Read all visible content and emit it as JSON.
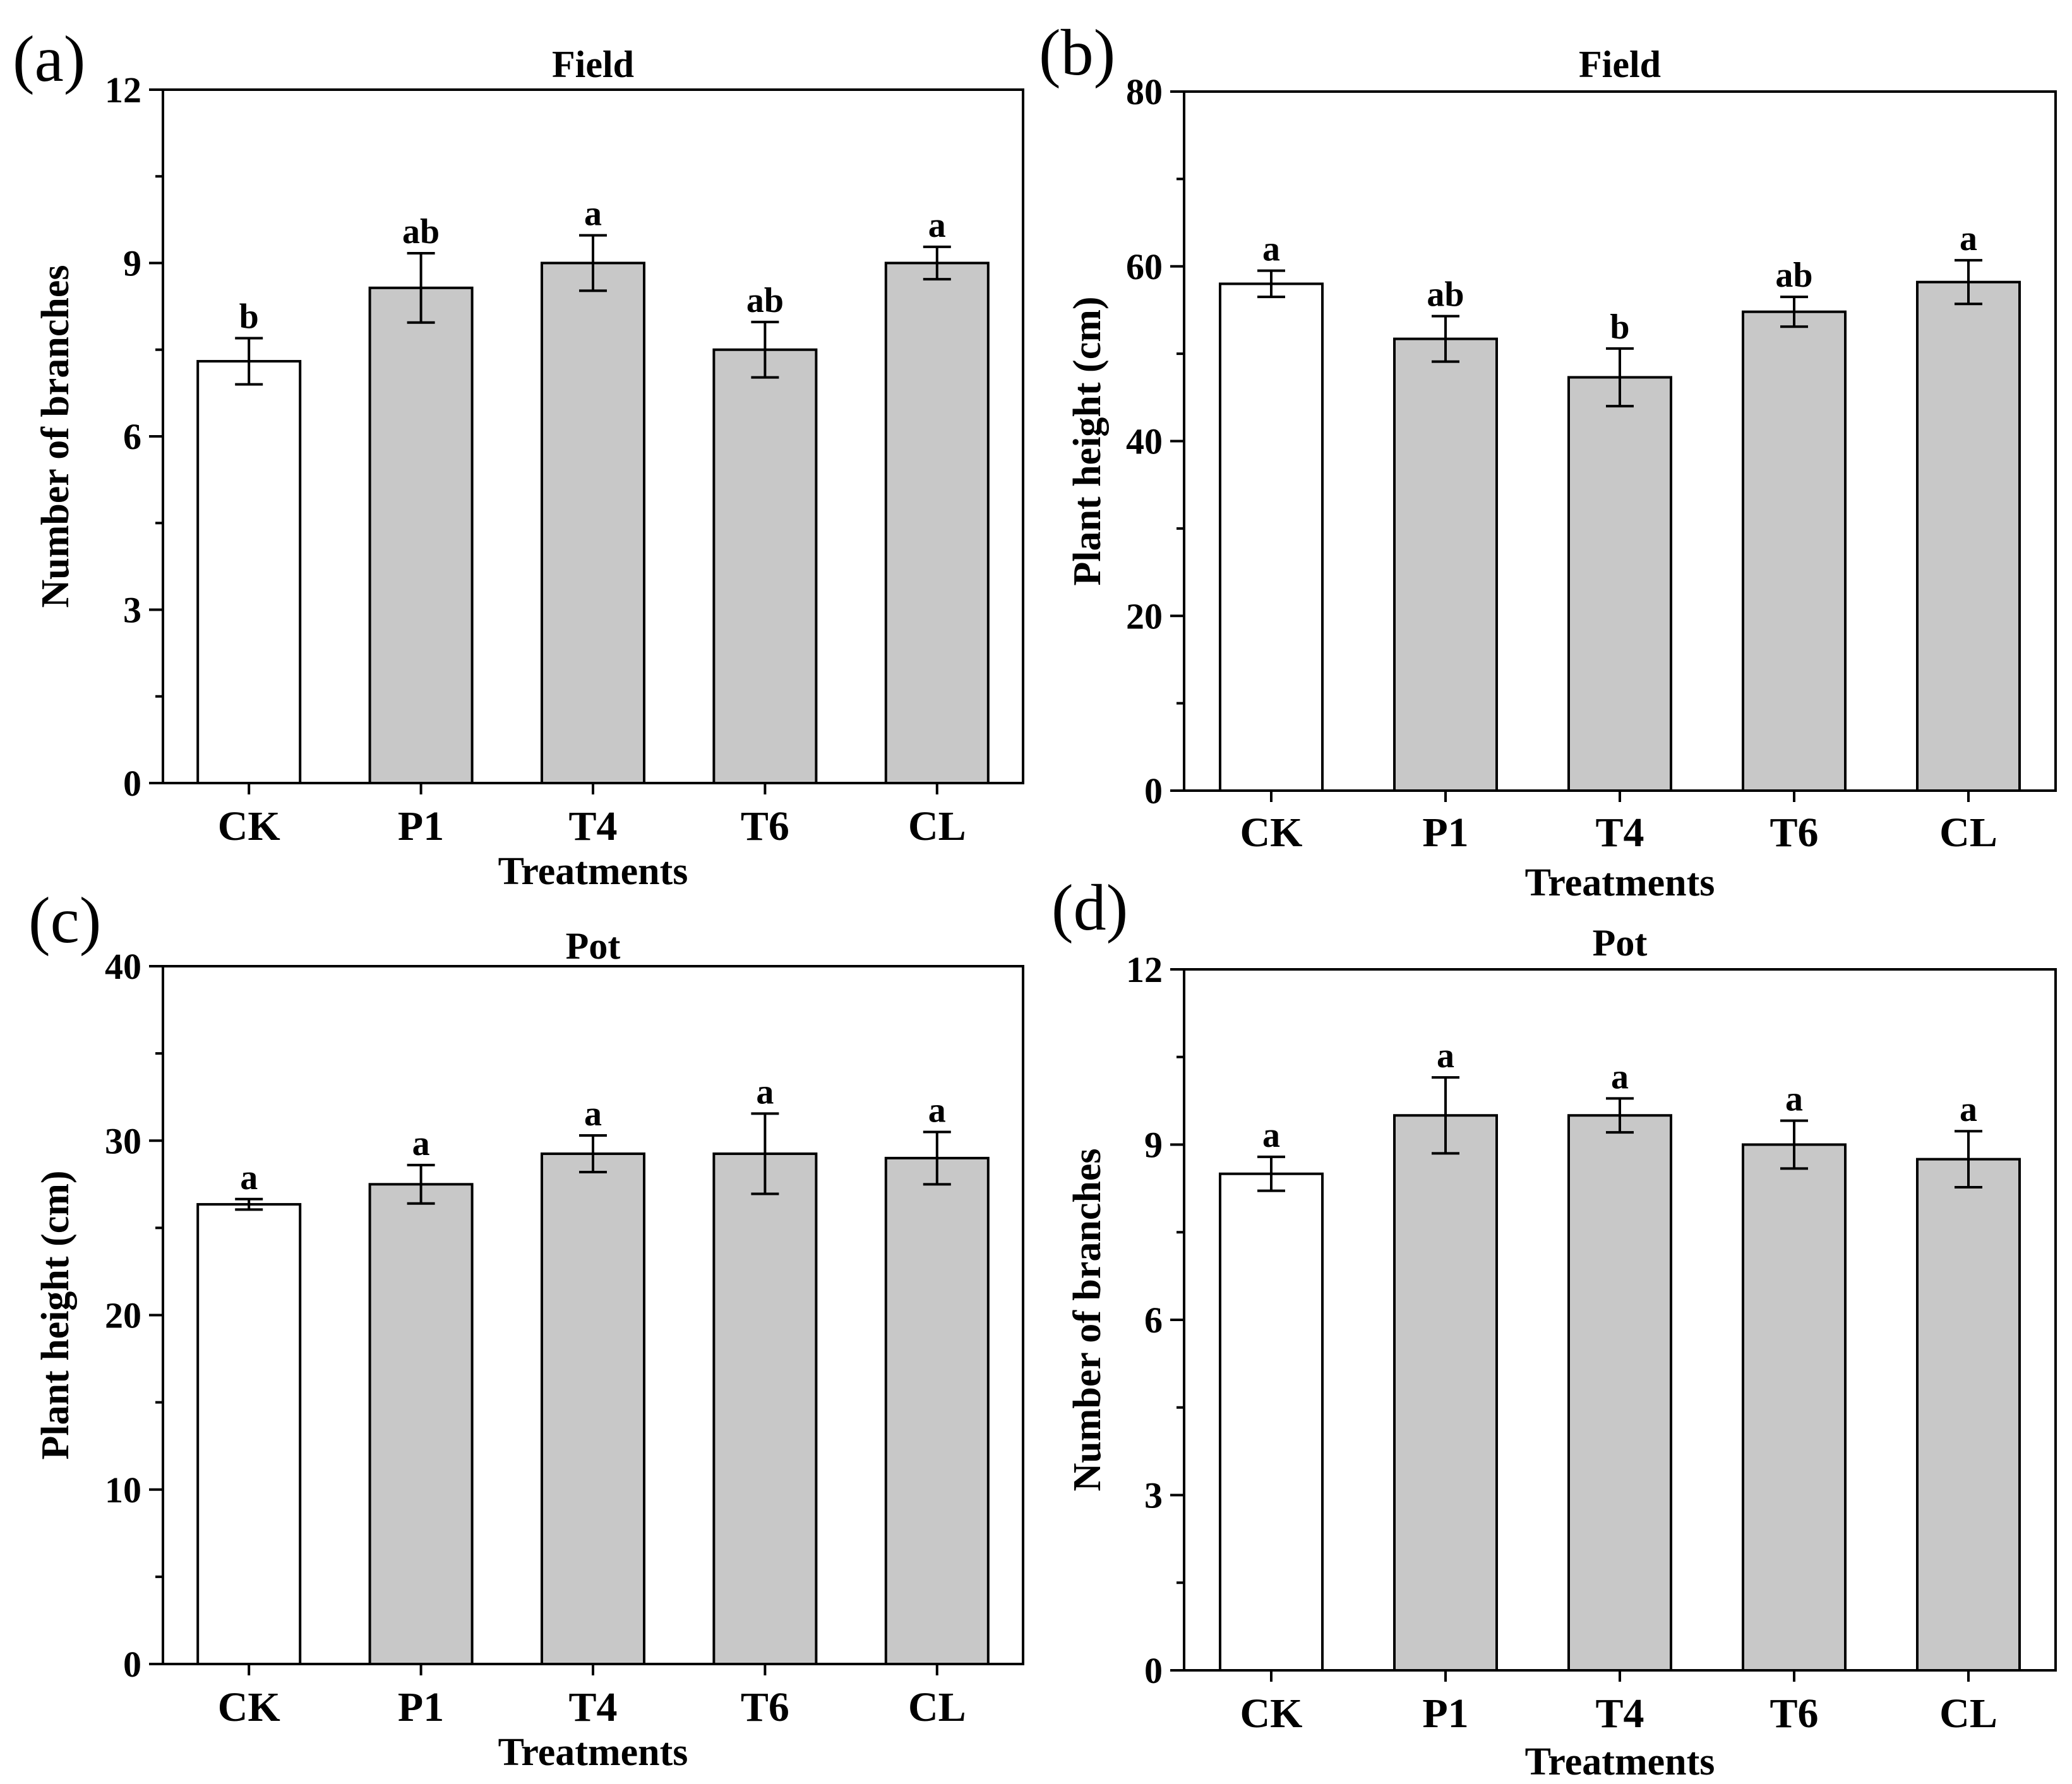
{
  "colors": {
    "control_fill": "#ffffff",
    "treatment_fill": "#c8c8c8",
    "stroke": "#000000"
  },
  "chart_data": [
    {
      "panel": "(a)",
      "type": "bar",
      "title": "Field",
      "xlabel": "Treatments",
      "ylabel": "Number of branches",
      "ylim": [
        0,
        12
      ],
      "yticks": [
        0,
        3,
        6,
        9,
        12
      ],
      "categories": [
        "CK",
        "P1",
        "T4",
        "T6",
        "CL"
      ],
      "values": [
        7.3,
        8.57,
        9.0,
        7.5,
        9.0
      ],
      "errors": [
        0.4,
        0.6,
        0.48,
        0.48,
        0.28
      ],
      "significance": [
        "b",
        "ab",
        "a",
        "ab",
        "a"
      ]
    },
    {
      "panel": "(b)",
      "type": "bar",
      "title": "Field",
      "xlabel": "Treatments",
      "ylabel": "Plant height (cm)",
      "ylim": [
        0,
        80
      ],
      "yticks": [
        0,
        20,
        40,
        60,
        80
      ],
      "categories": [
        "CK",
        "P1",
        "T4",
        "T6",
        "CL"
      ],
      "values": [
        58.0,
        51.7,
        47.3,
        54.8,
        58.2
      ],
      "errors": [
        1.5,
        2.6,
        3.3,
        1.7,
        2.5
      ],
      "significance": [
        "a",
        "ab",
        "b",
        "ab",
        "a"
      ]
    },
    {
      "panel": "(c)",
      "type": "bar",
      "title": "Pot",
      "xlabel": "Treatments",
      "ylabel": "Plant height (cm)",
      "ylim": [
        0,
        40
      ],
      "yticks": [
        0,
        10,
        20,
        30,
        40
      ],
      "categories": [
        "CK",
        "P1",
        "T4",
        "T6",
        "CL"
      ],
      "values": [
        26.35,
        27.5,
        29.25,
        29.25,
        29.0
      ],
      "errors": [
        0.3,
        1.1,
        1.05,
        2.3,
        1.5
      ],
      "significance": [
        "a",
        "a",
        "a",
        "a",
        "a"
      ]
    },
    {
      "panel": "(d)",
      "type": "bar",
      "title": "Pot",
      "xlabel": "Treatments",
      "ylabel": "Number of branches",
      "ylim": [
        0,
        12
      ],
      "yticks": [
        0,
        3,
        6,
        9,
        12
      ],
      "categories": [
        "CK",
        "P1",
        "T4",
        "T6",
        "CL"
      ],
      "values": [
        8.5,
        9.5,
        9.5,
        9.0,
        8.75
      ],
      "errors": [
        0.29,
        0.65,
        0.29,
        0.41,
        0.48
      ],
      "significance": [
        "a",
        "a",
        "a",
        "a",
        "a"
      ]
    }
  ]
}
